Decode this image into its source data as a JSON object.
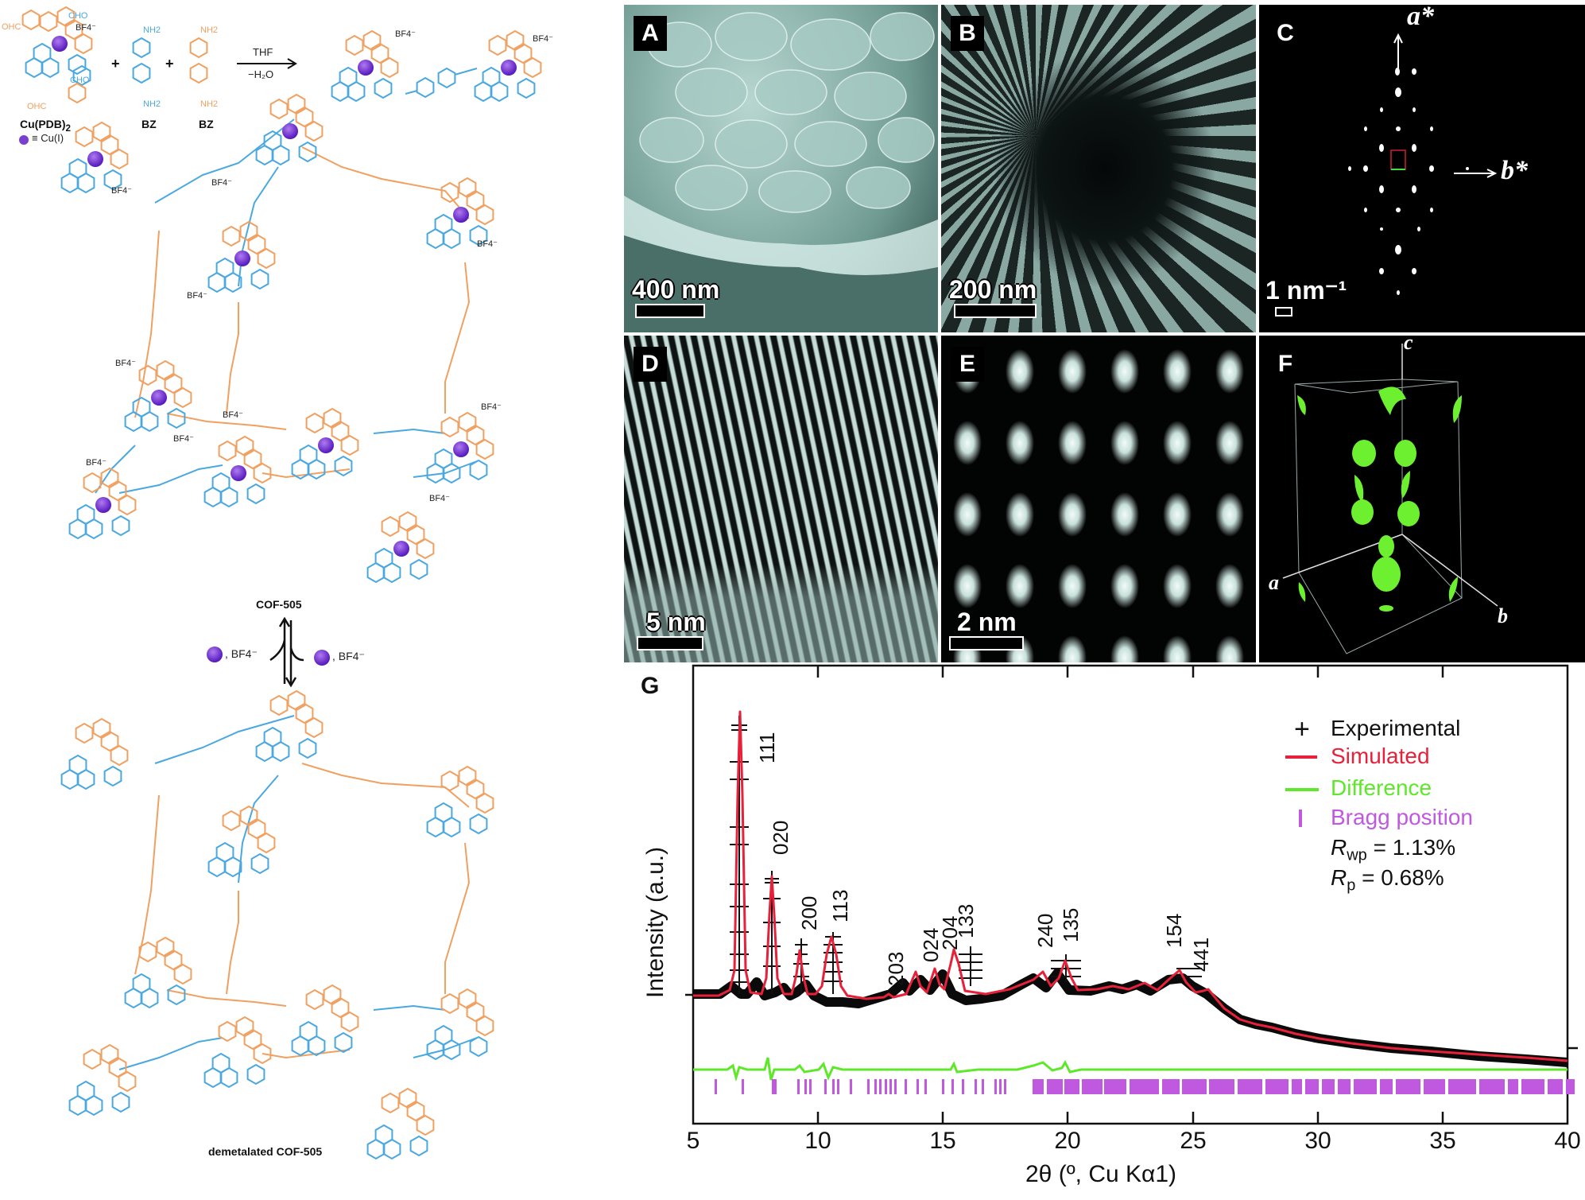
{
  "figure": {
    "scheme": {
      "reactants": {
        "cu_complex_label": "Cu(PDB)",
        "cu_complex_subscript": "2",
        "cu_legend": "≡ Cu(I)",
        "aldehyde_groups": [
          "CHO",
          "OHC",
          "CHO",
          "OHC"
        ],
        "counterion": "BF4⁻",
        "bz1_label": "BZ",
        "bz2_label": "BZ",
        "amine_groups": [
          "NH2",
          "NH2",
          "NH2",
          "NH2"
        ],
        "plus_sign": "+",
        "conditions_top": "THF",
        "conditions_bottom": "−H₂O"
      },
      "product_counterions": [
        "BF4⁻",
        "BF4⁻"
      ],
      "cof_label": "COF-505",
      "cof_counterions": [
        "BF4⁻",
        "BF4⁻",
        "BF4⁻",
        "BF4⁻",
        "BF4⁻",
        "BF4⁻",
        "BF4⁻",
        "BF4⁻",
        "BF4⁻",
        "BF4⁻"
      ],
      "equilibrium_left": ", BF4⁻",
      "equilibrium_right": ", BF4⁻",
      "demetalated_label": "demetalated COF-505",
      "colors": {
        "blue": "#4aa8e0",
        "orange": "#f0a060",
        "copper": "#7b3fd0"
      }
    },
    "panels": [
      {
        "letter": "A",
        "scale": "400 nm",
        "type": "SEM"
      },
      {
        "letter": "B",
        "scale": "200 nm",
        "type": "TEM"
      },
      {
        "letter": "C",
        "scale": "1 nm⁻¹",
        "type": "ED",
        "axis_a": "a*",
        "axis_b": "b*"
      },
      {
        "letter": "D",
        "scale": "5 nm",
        "type": "HRTEM"
      },
      {
        "letter": "E",
        "scale": "2 nm",
        "type": "Filtered"
      },
      {
        "letter": "F",
        "axes": [
          "c",
          "a",
          "b"
        ],
        "type": "3D reconstruction"
      },
      {
        "letter": "G",
        "type": "PXRD"
      }
    ]
  },
  "chart_data": {
    "type": "line",
    "panel": "G",
    "title": "",
    "xlabel": "2θ (º, Cu Kα1)",
    "ylabel": "Intensity (a.u.)",
    "xlim": [
      5,
      40
    ],
    "xticks": [
      5,
      10,
      15,
      20,
      25,
      30,
      35,
      40
    ],
    "grid": false,
    "legend_position": "upper right",
    "legend": [
      {
        "name": "Experimental",
        "marker": "+",
        "color": "#111111"
      },
      {
        "name": "Simulated",
        "marker": "line",
        "color": "#e8213a"
      },
      {
        "name": "Difference",
        "marker": "line",
        "color": "#5ee82a"
      },
      {
        "name": "Bragg position",
        "marker": "|",
        "color": "#c058e0"
      }
    ],
    "stats": {
      "Rwp": "1.13%",
      "Rp": "0.68%"
    },
    "peaks": [
      {
        "hkl": "111",
        "two_theta": 7.0,
        "rel_intensity": 100
      },
      {
        "hkl": "020",
        "two_theta": 8.3,
        "rel_intensity": 42
      },
      {
        "hkl": "200",
        "two_theta": 9.5,
        "rel_intensity": 17
      },
      {
        "hkl": "113",
        "two_theta": 10.8,
        "rel_intensity": 22
      },
      {
        "hkl": "203",
        "two_theta": 13.0,
        "rel_intensity": 2
      },
      {
        "hkl": "024",
        "two_theta": 14.3,
        "rel_intensity": 9
      },
      {
        "hkl": "204",
        "two_theta": 15.0,
        "rel_intensity": 10
      },
      {
        "hkl": "133",
        "two_theta": 15.9,
        "rel_intensity": 16
      },
      {
        "hkl": "240",
        "two_theta": 19.0,
        "rel_intensity": 10
      },
      {
        "hkl": "135",
        "two_theta": 19.9,
        "rel_intensity": 13
      },
      {
        "hkl": "154",
        "two_theta": 24.3,
        "rel_intensity": 12
      },
      {
        "hkl": "441",
        "two_theta": 25.3,
        "rel_intensity": 5
      }
    ],
    "series": [
      {
        "name": "Simulated",
        "x": [
          5,
          6,
          6.5,
          7.0,
          7.5,
          8,
          8.3,
          8.7,
          9.2,
          9.5,
          9.9,
          10.3,
          10.8,
          11.3,
          12,
          13,
          13.5,
          14.3,
          14.7,
          15.0,
          15.4,
          15.9,
          16.4,
          17,
          18,
          19.0,
          19.4,
          19.9,
          20.4,
          21,
          21.5,
          22,
          22.5,
          23,
          24.3,
          25,
          25.3,
          26,
          27,
          28,
          30,
          32,
          35,
          38,
          40
        ],
        "y": [
          0,
          0,
          5,
          100,
          5,
          2,
          42,
          4,
          2,
          17,
          2,
          3,
          22,
          2,
          0,
          2,
          0,
          9,
          1,
          10,
          3,
          16,
          1,
          2,
          2,
          10,
          5,
          13,
          2,
          2,
          3,
          2,
          4,
          1,
          12,
          4,
          5,
          -6,
          -10,
          -13,
          -18,
          -22,
          -26,
          -29,
          -31
        ]
      },
      {
        "name": "Difference",
        "note": "flat near zero, small residuals near 7, 8.3, 10.8 and 18-20"
      }
    ],
    "bragg_positions": [
      5.9,
      7.0,
      8.2,
      8.3,
      9.2,
      9.5,
      9.7,
      10.3,
      10.6,
      10.8,
      11.3,
      12.0,
      12.3,
      12.5,
      12.7,
      12.9,
      13.1,
      13.5,
      14.0,
      14.3,
      15.0,
      15.4,
      15.8,
      16.3,
      16.6,
      17.1,
      17.3,
      17.5,
      18.8,
      19.2,
      19.5,
      19.9,
      20.0,
      20.3,
      20.6,
      21.0,
      21.3,
      21.5,
      22.0,
      22.5,
      22.8,
      23.2,
      23.5,
      24.3,
      24.6,
      25.0,
      25.3,
      25.5
    ]
  }
}
